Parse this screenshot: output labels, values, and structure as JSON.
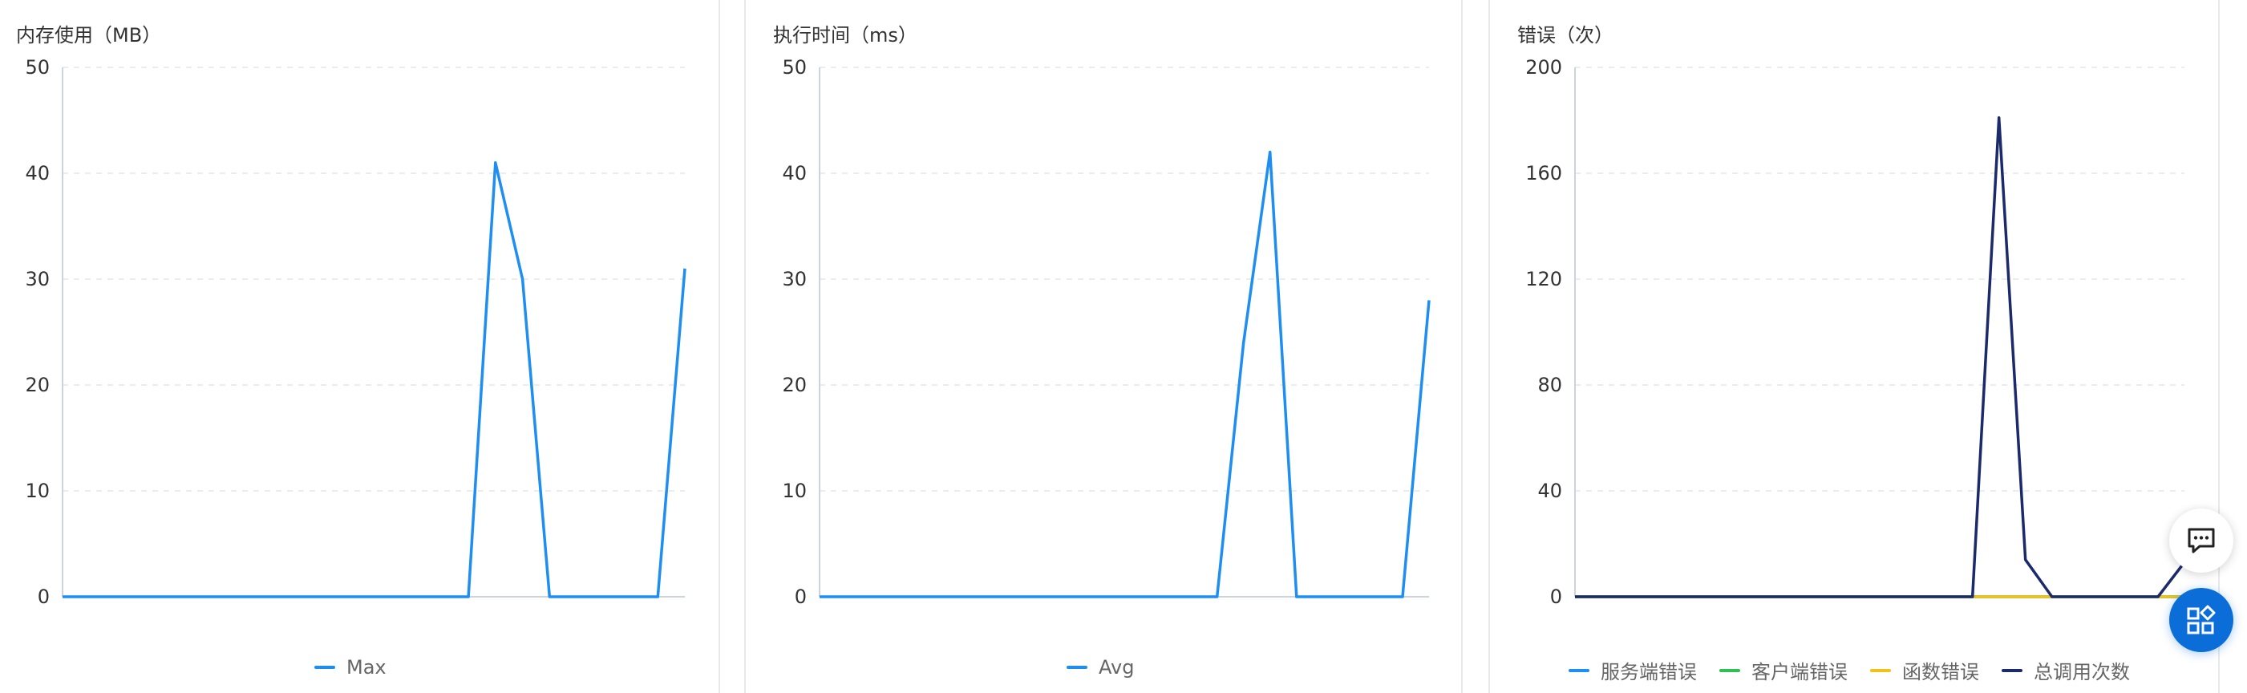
{
  "chart_data": [
    {
      "type": "line",
      "title": "内存使用（MB）",
      "ylim": [
        0,
        50
      ],
      "yticks": [
        "50",
        "40",
        "30",
        "20",
        "10",
        "0"
      ],
      "grid": true,
      "legend_position": "bottom",
      "x_count": 24,
      "series": [
        {
          "name": "Max",
          "color": "#1e8ef0",
          "values": [
            0,
            0,
            0,
            0,
            0,
            0,
            0,
            0,
            0,
            0,
            0,
            0,
            0,
            0,
            0,
            0,
            41,
            30,
            0,
            0,
            0,
            0,
            0,
            31
          ]
        }
      ]
    },
    {
      "type": "line",
      "title": "执行时间（ms）",
      "ylim": [
        0,
        50
      ],
      "yticks": [
        "50",
        "40",
        "30",
        "20",
        "10",
        "0"
      ],
      "grid": true,
      "legend_position": "bottom",
      "x_count": 24,
      "series": [
        {
          "name": "Avg",
          "color": "#1e8ef0",
          "values": [
            0,
            0,
            0,
            0,
            0,
            0,
            0,
            0,
            0,
            0,
            0,
            0,
            0,
            0,
            0,
            0,
            24,
            42,
            0,
            0,
            0,
            0,
            0,
            28
          ]
        }
      ]
    },
    {
      "type": "line",
      "title": "错误（次）",
      "ylim": [
        0,
        200
      ],
      "yticks": [
        "200",
        "160",
        "120",
        "80",
        "40",
        "0"
      ],
      "grid": true,
      "legend_position": "bottom",
      "x_count": 24,
      "series": [
        {
          "name": "服务端错误",
          "color": "#1e8ef0",
          "values": [
            0,
            0,
            0,
            0,
            0,
            0,
            0,
            0,
            0,
            0,
            0,
            0,
            0,
            0,
            0,
            0,
            0,
            0,
            0,
            0,
            0,
            0,
            0,
            0
          ]
        },
        {
          "name": "客户端错误",
          "color": "#2fbf55",
          "values": [
            0,
            0,
            0,
            0,
            0,
            0,
            0,
            0,
            0,
            0,
            0,
            0,
            0,
            0,
            0,
            0,
            0,
            0,
            0,
            0,
            0,
            0,
            0,
            0
          ]
        },
        {
          "name": "函数错误",
          "color": "#f2c21a",
          "values": [
            0,
            0,
            0,
            0,
            0,
            0,
            0,
            0,
            0,
            0,
            0,
            0,
            0,
            0,
            0,
            0,
            0,
            0,
            0,
            0,
            0,
            0,
            0,
            0
          ]
        },
        {
          "name": "总调用次数",
          "color": "#1b2a6b",
          "values": [
            0,
            0,
            0,
            0,
            0,
            0,
            0,
            0,
            0,
            0,
            0,
            0,
            0,
            0,
            0,
            0,
            181,
            14,
            0,
            0,
            0,
            0,
            0,
            13
          ]
        }
      ]
    }
  ],
  "floating_buttons": {
    "chat_icon": "chat-bubble-icon",
    "apps_icon": "apps-grid-icon"
  }
}
